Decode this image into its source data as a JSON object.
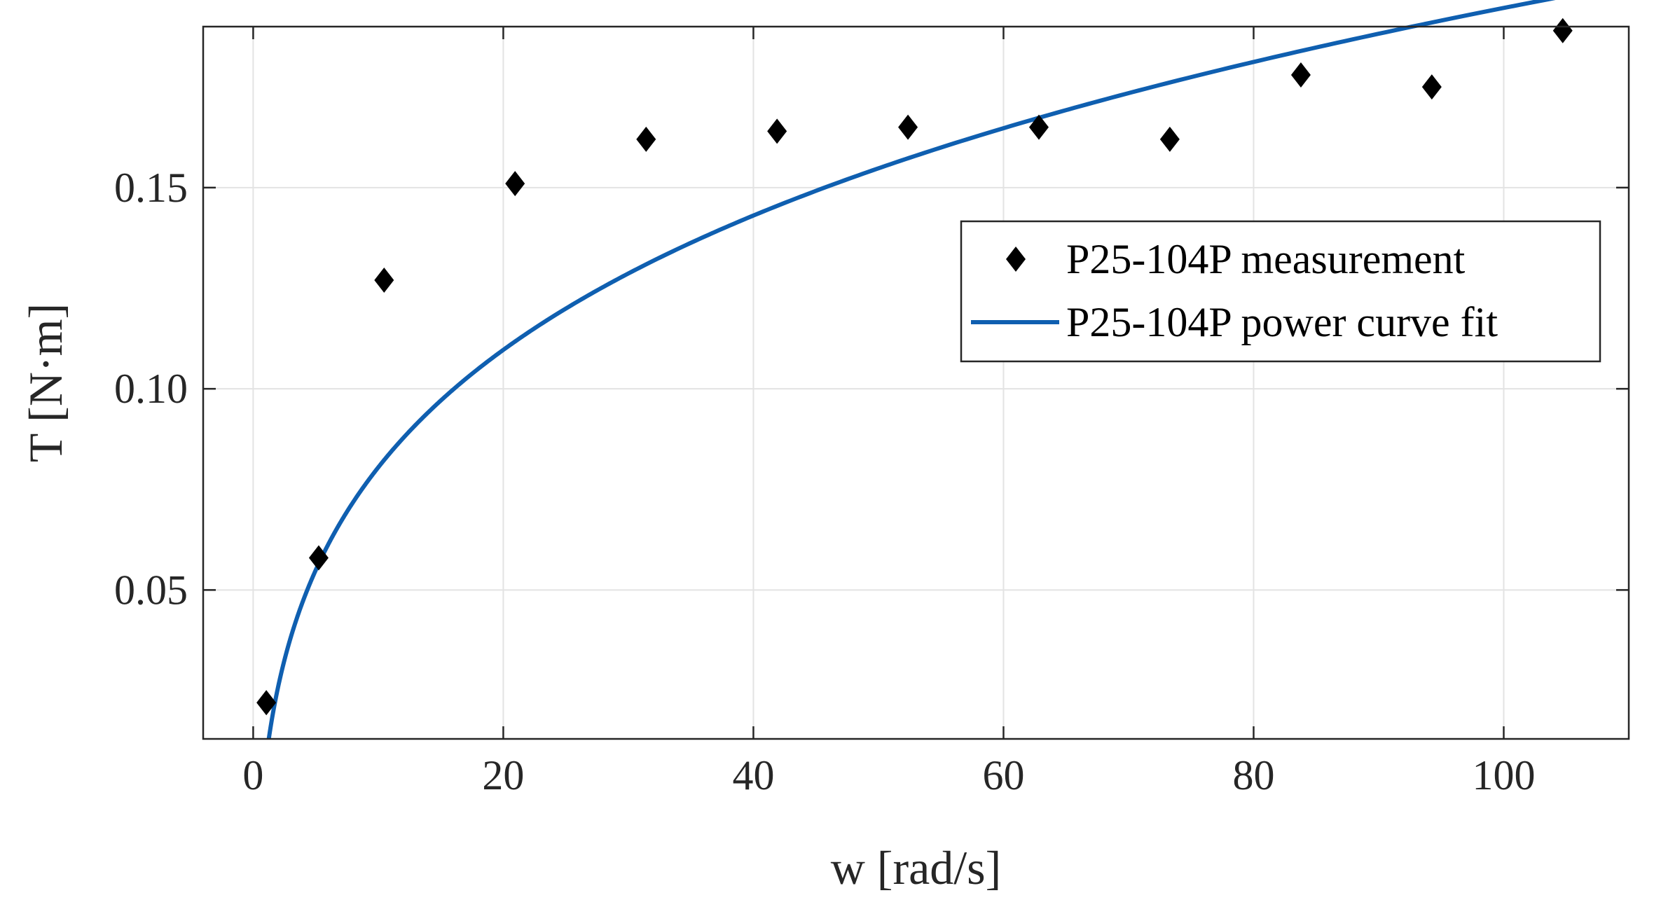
{
  "chart_data": {
    "type": "scatter",
    "title": "",
    "xlabel": "w [rad/s]",
    "ylabel": "T [N·m]",
    "xlim": [
      -4,
      110
    ],
    "ylim": [
      0.013,
      0.19
    ],
    "xticks": [
      0,
      20,
      40,
      60,
      80,
      100
    ],
    "xtick_labels": [
      "0",
      "20",
      "40",
      "60",
      "80",
      "100"
    ],
    "yticks": [
      0.05,
      0.1,
      0.15
    ],
    "ytick_labels": [
      "0.05",
      "0.10",
      "0.15"
    ],
    "grid": true,
    "legend_position": "upper-right",
    "series": [
      {
        "name": "P25-104P measurement",
        "kind": "scatter",
        "marker": "diamond",
        "color": "#000000",
        "x": [
          1.05,
          5.24,
          10.47,
          20.94,
          31.42,
          41.89,
          52.36,
          62.83,
          73.3,
          83.78,
          94.25,
          104.72
        ],
        "y": [
          0.022,
          0.058,
          0.127,
          0.151,
          0.162,
          0.164,
          0.165,
          0.165,
          0.162,
          0.178,
          0.175,
          0.189
        ]
      },
      {
        "name": "P25-104P power curve fit",
        "kind": "line",
        "color": "#0f5fb0",
        "model": "a*w^b + c",
        "params": {
          "a": 0.1306,
          "b": 0.1932,
          "c": -0.1233
        },
        "x_range": [
          1.05,
          110
        ]
      }
    ]
  }
}
